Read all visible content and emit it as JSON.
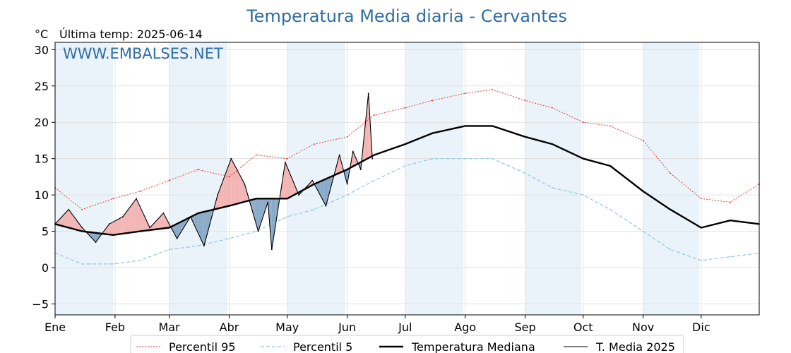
{
  "chart_data": {
    "type": "line",
    "title": "Temperatura Media diaria - Cervantes",
    "unit_label": "°C",
    "last_temp_label": "Última temp: 2025-06-14",
    "watermark": "WWW.EMBALSES.NET",
    "ylim": [
      -6.5,
      31.0
    ],
    "yticks": [
      -5,
      0,
      5,
      10,
      15,
      20,
      25,
      30
    ],
    "ytick_labels": [
      "−5",
      "0",
      "5",
      "10",
      "15",
      "20",
      "25",
      "30"
    ],
    "months": [
      "Ene",
      "Feb",
      "Mar",
      "Abr",
      "May",
      "Jun",
      "Jul",
      "Ago",
      "Sep",
      "Oct",
      "Nov",
      "Dic"
    ],
    "grid": true,
    "legend": "bottom-center",
    "colors": {
      "p95": "#e8241c",
      "p5": "#8fc9dc",
      "median": "#000000",
      "current": "#000000",
      "above_fill": "#f3b4b4",
      "below_fill": "#8aaac8",
      "band": "#eaf3fa",
      "title": "#2e6da4"
    },
    "series": [
      {
        "name": "Percentil 95",
        "key": "p95",
        "x_day": [
          1,
          15,
          31,
          45,
          60,
          75,
          91,
          105,
          121,
          135,
          152,
          166,
          182,
          196,
          213,
          227,
          244,
          258,
          274,
          288,
          305,
          319,
          335,
          350,
          365
        ],
        "values": [
          11.0,
          8.0,
          9.5,
          10.5,
          12.0,
          13.5,
          12.5,
          15.5,
          15.0,
          17.0,
          18.0,
          21.0,
          22.0,
          23.0,
          24.0,
          24.5,
          23.0,
          22.0,
          20.0,
          19.5,
          17.5,
          13.0,
          9.5,
          9.0,
          11.5
        ]
      },
      {
        "name": "Percentil 5",
        "key": "p5",
        "x_day": [
          1,
          15,
          31,
          45,
          60,
          75,
          91,
          105,
          121,
          135,
          152,
          166,
          182,
          196,
          213,
          227,
          244,
          258,
          274,
          288,
          305,
          319,
          335,
          350,
          365
        ],
        "values": [
          2.0,
          0.5,
          0.5,
          1.0,
          2.5,
          3.0,
          4.0,
          5.0,
          7.0,
          8.0,
          10.0,
          12.0,
          14.0,
          15.0,
          15.0,
          15.0,
          13.0,
          11.0,
          10.0,
          8.0,
          5.0,
          2.5,
          1.0,
          1.5,
          2.0
        ]
      },
      {
        "name": "Temperatura Mediana",
        "key": "median",
        "x_day": [
          1,
          15,
          31,
          45,
          60,
          75,
          91,
          105,
          121,
          135,
          152,
          166,
          182,
          196,
          213,
          227,
          244,
          258,
          274,
          288,
          305,
          319,
          335,
          350,
          365
        ],
        "values": [
          6.0,
          5.0,
          4.5,
          5.0,
          5.5,
          7.5,
          8.5,
          9.5,
          9.5,
          11.5,
          13.5,
          15.5,
          17.0,
          18.5,
          19.5,
          19.5,
          18.0,
          17.0,
          15.0,
          14.0,
          10.5,
          8.0,
          5.5,
          6.5,
          6.0
        ]
      },
      {
        "name": "T. Media 2025",
        "key": "current",
        "x_day": [
          1,
          8,
          15,
          22,
          29,
          36,
          43,
          50,
          57,
          64,
          71,
          78,
          85,
          92,
          99,
          106,
          111,
          113,
          120,
          127,
          134,
          141,
          148,
          152,
          155,
          159,
          163,
          165
        ],
        "values": [
          6.0,
          8.0,
          5.5,
          3.5,
          6.0,
          7.0,
          9.5,
          5.5,
          7.5,
          4.0,
          7.0,
          3.0,
          10.0,
          15.0,
          11.5,
          5.0,
          9.0,
          2.5,
          14.5,
          10.0,
          12.0,
          8.5,
          15.5,
          11.5,
          16.0,
          13.5,
          24.0,
          15.0
        ]
      }
    ]
  }
}
